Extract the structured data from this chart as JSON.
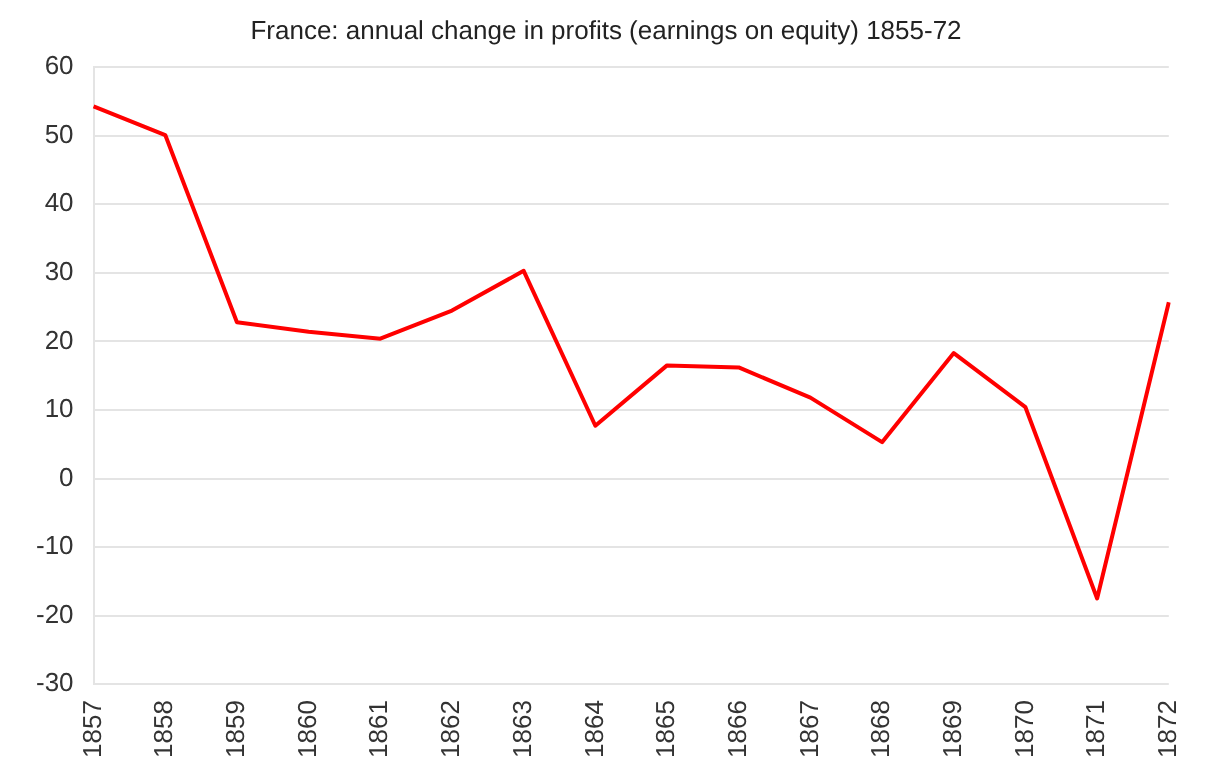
{
  "chart_data": {
    "type": "line",
    "title": "France: annual change in profits (earnings on equity) 1855-72",
    "categories": [
      "1857",
      "1858",
      "1859",
      "1860",
      "1861",
      "1862",
      "1863",
      "1864",
      "1865",
      "1866",
      "1867",
      "1868",
      "1869",
      "1870",
      "1871",
      "1872"
    ],
    "series": [
      {
        "color": "#ff0000",
        "values": [
          54.3,
          50.1,
          22.8,
          21.4,
          20.4,
          24.5,
          30.3,
          7.7,
          16.5,
          16.2,
          11.8,
          5.3,
          18.3,
          10.4,
          -17.5,
          25.7
        ]
      }
    ],
    "ylim": [
      -30,
      60
    ],
    "yticks": [
      -30,
      -20,
      -10,
      0,
      10,
      20,
      30,
      40,
      50,
      60
    ],
    "grid": "y",
    "legend": false,
    "marker": "none",
    "line_style": "solid"
  }
}
